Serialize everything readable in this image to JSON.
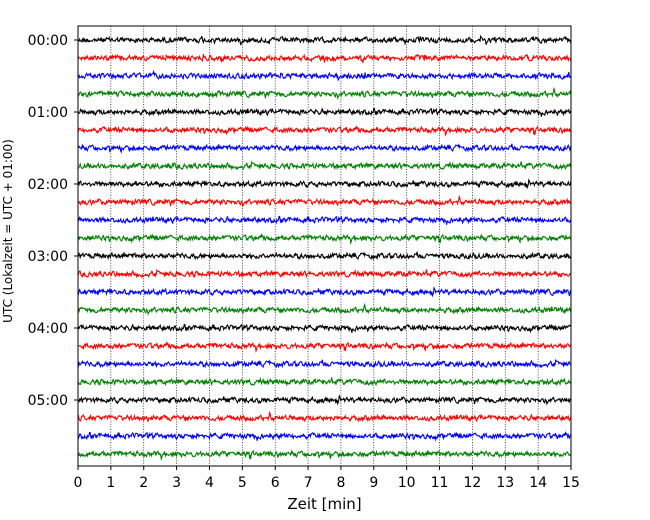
{
  "chart_data": {
    "type": "line",
    "title": "",
    "xlabel": "Zeit  [min]",
    "ylabel": "UTC (Lokalzeit = UTC + 01:00)",
    "xlim": [
      0,
      15
    ],
    "x_ticks": [
      "0",
      "1",
      "2",
      "3",
      "4",
      "5",
      "6",
      "7",
      "8",
      "9",
      "10",
      "11",
      "12",
      "13",
      "14",
      "15"
    ],
    "y_tick_labels": [
      "00:00",
      "01:00",
      "02:00",
      "03:00",
      "04:00",
      "05:00"
    ],
    "grid": "vertical dotted at every minute",
    "trace_interval_minutes": 15,
    "trace_count": 24,
    "trace_colors": [
      "#000000",
      "#ff0000",
      "#0000ff",
      "#008000"
    ],
    "series": [
      {
        "start": "00:00",
        "color": "#000000",
        "amplitude": 0.12
      },
      {
        "start": "00:15",
        "color": "#ff0000",
        "amplitude": 0.12
      },
      {
        "start": "00:30",
        "color": "#0000ff",
        "amplitude": 0.12
      },
      {
        "start": "00:45",
        "color": "#008000",
        "amplitude": 0.12
      },
      {
        "start": "01:00",
        "color": "#000000",
        "amplitude": 0.12
      },
      {
        "start": "01:15",
        "color": "#ff0000",
        "amplitude": 0.12
      },
      {
        "start": "01:30",
        "color": "#0000ff",
        "amplitude": 0.12
      },
      {
        "start": "01:45",
        "color": "#008000",
        "amplitude": 0.12
      },
      {
        "start": "02:00",
        "color": "#000000",
        "amplitude": 0.12
      },
      {
        "start": "02:15",
        "color": "#ff0000",
        "amplitude": 0.12
      },
      {
        "start": "02:30",
        "color": "#0000ff",
        "amplitude": 0.12
      },
      {
        "start": "02:45",
        "color": "#008000",
        "amplitude": 0.12
      },
      {
        "start": "03:00",
        "color": "#000000",
        "amplitude": 0.12
      },
      {
        "start": "03:15",
        "color": "#ff0000",
        "amplitude": 0.12
      },
      {
        "start": "03:30",
        "color": "#0000ff",
        "amplitude": 0.12
      },
      {
        "start": "03:45",
        "color": "#008000",
        "amplitude": 0.12
      },
      {
        "start": "04:00",
        "color": "#000000",
        "amplitude": 0.12
      },
      {
        "start": "04:15",
        "color": "#ff0000",
        "amplitude": 0.12
      },
      {
        "start": "04:30",
        "color": "#0000ff",
        "amplitude": 0.12
      },
      {
        "start": "04:45",
        "color": "#008000",
        "amplitude": 0.12
      },
      {
        "start": "05:00",
        "color": "#000000",
        "amplitude": 0.12
      },
      {
        "start": "05:15",
        "color": "#ff0000",
        "amplitude": 0.12
      },
      {
        "start": "05:30",
        "color": "#0000ff",
        "amplitude": 0.12
      },
      {
        "start": "05:45",
        "color": "#008000",
        "amplitude": 0.12
      }
    ]
  }
}
